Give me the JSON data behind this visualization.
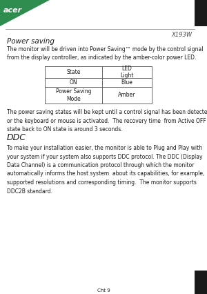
{
  "page_bg": "#ffffff",
  "acer_logo_color": "#2d8c4e",
  "header_model": "X193W",
  "power_saving_title": "Power saving",
  "power_saving_intro": "The monitor will be driven into Power Saving™ mode by the control signal\nfrom the display controller, as indicated by the amber-color power LED.",
  "table_col1_header": "State",
  "table_col2_header": "LED\nLight",
  "table_row1_col1": "ON",
  "table_row1_col2": "Blue",
  "table_row2_col1": "Power Saving\nMode",
  "table_row2_col2": "Amber",
  "power_saving_body": "The power saving states will be kept until a control signal has been detected\nor the keyboard or mouse is activated.  The recovery time  from Active OFF\nstate back to ON state is around 3 seconds.",
  "ddc_title": "DDC",
  "ddc_body": "To make your installation easier, the monitor is able to Plug and Play with\nyour system if your system also supports DDC protocol. The DDC (Display\nData Channel) is a communication protocol through which the monitor\nautomatically informs the host system  about its capabilities, for example,\nsupported resolutions and corresponding timing.  The monitor supports\nDDC2B standard.",
  "page_number": "Cht 9",
  "font_color": "#1a1a1a",
  "table_border_color": "#666666",
  "font_size_body": 5.5,
  "font_size_title": 7.5,
  "font_size_header_model": 6.0,
  "font_size_page": 5.0
}
